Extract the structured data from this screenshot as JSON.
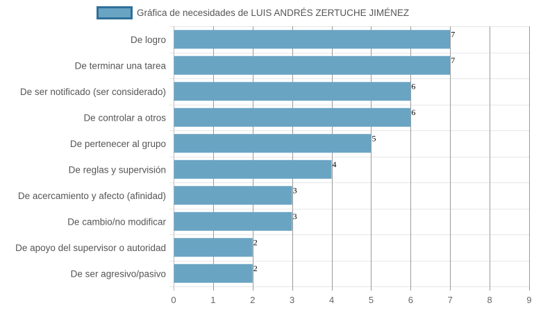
{
  "chart_data": {
    "type": "bar",
    "orientation": "horizontal",
    "title": "",
    "xlabel": "",
    "ylabel": "",
    "categories": [
      "De logro",
      "De terminar una tarea",
      "De ser notificado (ser considerado)",
      "De controlar a otros",
      "De pertenecer al grupo",
      "De reglas y supervisión",
      "De acercamiento y afecto (afinidad)",
      "De cambio/no modificar",
      "De apoyo del supervisor o autoridad",
      "De ser agresivo/pasivo"
    ],
    "series": [
      {
        "name": "Gráfica de necesidades de LUIS ANDRÉS ZERTUCHE JIMÉNEZ",
        "values": [
          7,
          7,
          6,
          6,
          5,
          4,
          3,
          3,
          2,
          2
        ],
        "color": "#6aa4c3"
      }
    ],
    "xlim": [
      0,
      9
    ],
    "xticks": [
      "0",
      "1",
      "2",
      "3",
      "4",
      "5",
      "6",
      "7",
      "8",
      "9"
    ],
    "grid": true,
    "legend_position": "top-center",
    "data_labels": true
  }
}
